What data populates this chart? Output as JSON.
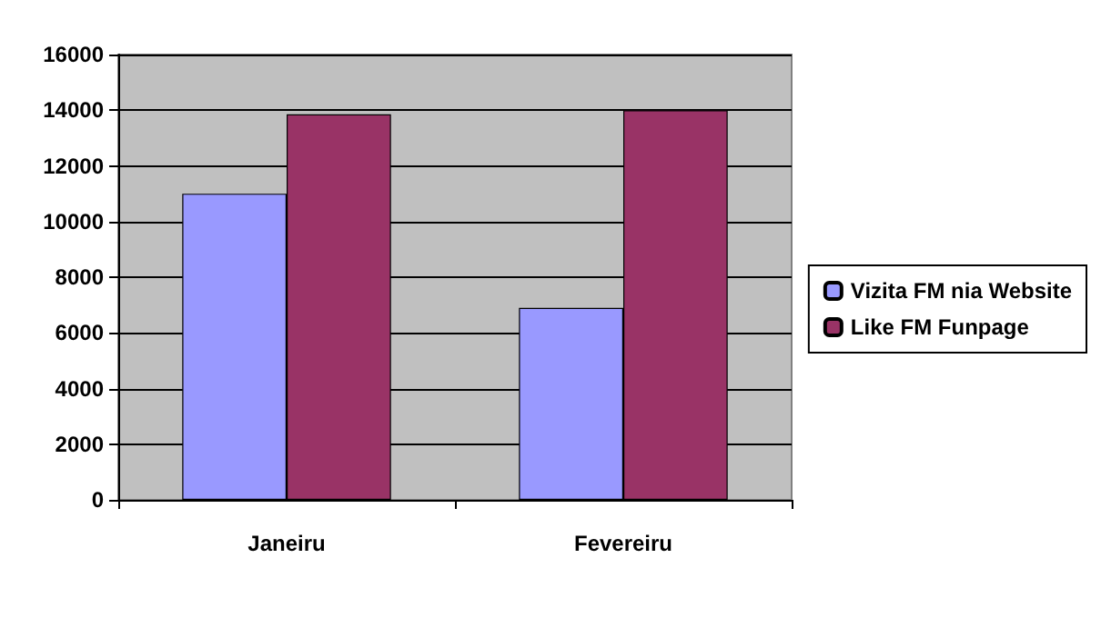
{
  "chart_data": {
    "type": "bar",
    "categories": [
      "Janeiru",
      "Fevereiru"
    ],
    "series": [
      {
        "name": "Vizita FM nia Website",
        "color": "#9999ff",
        "values": [
          11000,
          6900
        ]
      },
      {
        "name": "Like FM Funpage",
        "color": "#993366",
        "values": [
          13850,
          14000
        ]
      }
    ],
    "ylim": [
      0,
      16000
    ],
    "yticks": [
      0,
      2000,
      4000,
      6000,
      8000,
      10000,
      12000,
      14000,
      16000
    ],
    "grid": "y",
    "legend": "right"
  }
}
